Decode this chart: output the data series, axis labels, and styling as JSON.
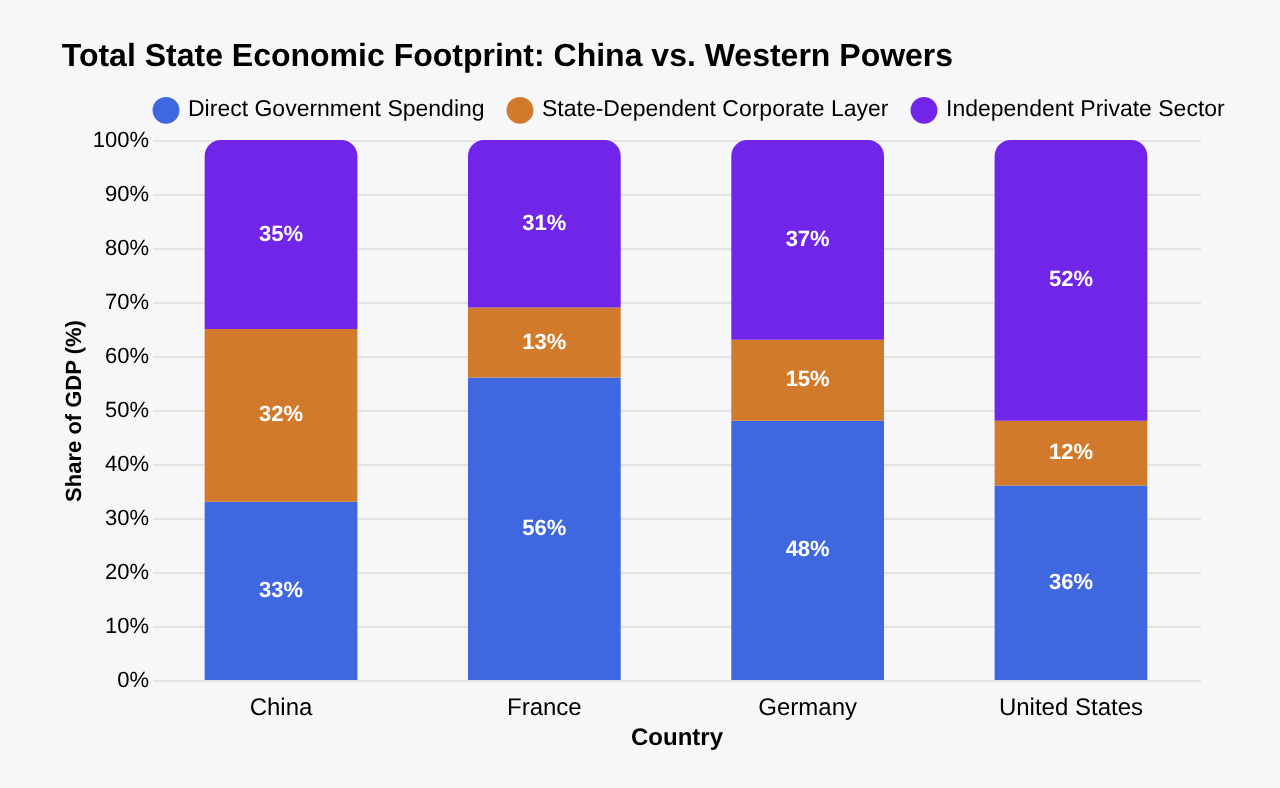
{
  "chart_data": {
    "type": "bar",
    "title": "Total State Economic Footprint: China vs. Western Powers",
    "categories": [
      "China",
      "France",
      "Germany",
      "United States"
    ],
    "stacked": true,
    "series": [
      {
        "name": "Direct Government Spending",
        "color": "#3f67e0",
        "values": [
          33,
          56,
          48,
          36
        ],
        "value_labels": [
          "33%",
          "56%",
          "48%",
          "36%"
        ]
      },
      {
        "name": "State-Dependent Corporate Layer",
        "color": "#d27a2c",
        "values": [
          32,
          13,
          15,
          12
        ],
        "value_labels": [
          "32%",
          "13%",
          "15%",
          "12%"
        ]
      },
      {
        "name": "Independent Private Sector",
        "color": "#7125e8",
        "values": [
          35,
          31,
          37,
          52
        ],
        "value_labels": [
          "35%",
          "31%",
          "37%",
          "52%"
        ]
      }
    ],
    "xlabel": "Country",
    "ylabel": "Share of GDP (%)",
    "ylim": [
      0,
      100
    ],
    "yticks": [
      {
        "value": 0,
        "label": "0%"
      },
      {
        "value": 10,
        "label": "10%"
      },
      {
        "value": 20,
        "label": "20%"
      },
      {
        "value": 30,
        "label": "30%"
      },
      {
        "value": 40,
        "label": "40%"
      },
      {
        "value": 50,
        "label": "50%"
      },
      {
        "value": 60,
        "label": "60%"
      },
      {
        "value": 70,
        "label": "70%"
      },
      {
        "value": 80,
        "label": "80%"
      },
      {
        "value": 90,
        "label": "90%"
      },
      {
        "value": 100,
        "label": "100%"
      }
    ],
    "grid": "y",
    "legend": "top left"
  }
}
